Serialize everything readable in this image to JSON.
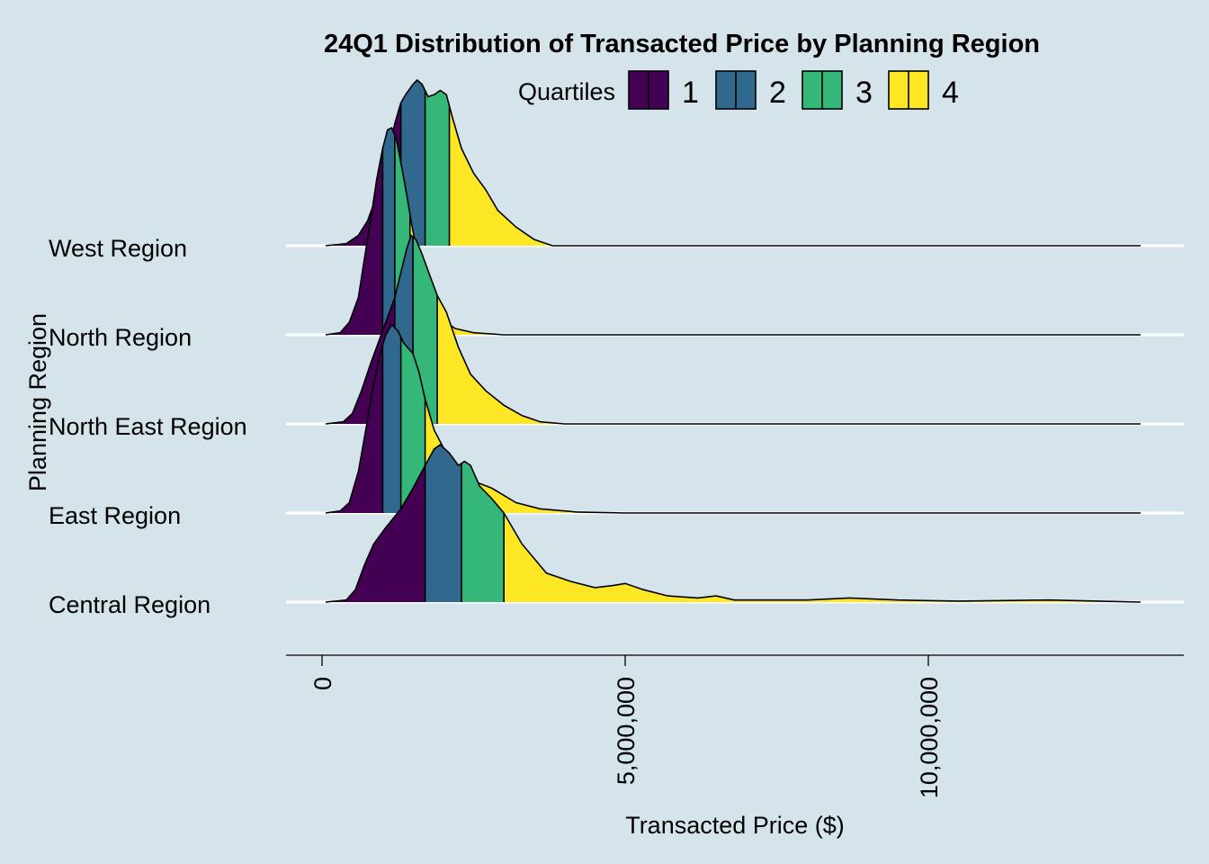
{
  "chart_data": {
    "type": "ridgeline",
    "title": "24Q1 Distribution of Transacted Price by Planning Region",
    "xlabel": "Transacted Price ($)",
    "ylabel": "Planning Region",
    "xlim": [
      -550000,
      14300000
    ],
    "x_ticks": [
      {
        "value": 0,
        "label": "0"
      },
      {
        "value": 5000000,
        "label": "5,000,000"
      },
      {
        "value": 10000000,
        "label": "10,000,000"
      }
    ],
    "legend": {
      "title": "Quartiles",
      "position": "top",
      "items": [
        {
          "label": "1",
          "color": "#440154"
        },
        {
          "label": "2",
          "color": "#31688e"
        },
        {
          "label": "3",
          "color": "#35b779"
        },
        {
          "label": "4",
          "color": "#fde725"
        }
      ]
    },
    "background": "#d5e4eb",
    "grid": "horizontal white baselines",
    "categories": [
      "Central Region",
      "East Region",
      "North East Region",
      "North Region",
      "West Region"
    ],
    "series": [
      {
        "name": "Central Region",
        "range": [
          60000,
          13500000
        ],
        "quartiles": [
          1700000,
          2300000,
          3000000
        ],
        "density": [
          [
            60000,
            0
          ],
          [
            400000,
            0.01
          ],
          [
            550000,
            0.06
          ],
          [
            700000,
            0.18
          ],
          [
            850000,
            0.28
          ],
          [
            1050000,
            0.36
          ],
          [
            1300000,
            0.45
          ],
          [
            1500000,
            0.55
          ],
          [
            1700000,
            0.66
          ],
          [
            1850000,
            0.74
          ],
          [
            1950000,
            0.76
          ],
          [
            2100000,
            0.72
          ],
          [
            2250000,
            0.66
          ],
          [
            2350000,
            0.68
          ],
          [
            2450000,
            0.66
          ],
          [
            2600000,
            0.56
          ],
          [
            2800000,
            0.5
          ],
          [
            3000000,
            0.43
          ],
          [
            3300000,
            0.28
          ],
          [
            3700000,
            0.14
          ],
          [
            4100000,
            0.1
          ],
          [
            4500000,
            0.07
          ],
          [
            4800000,
            0.08
          ],
          [
            5000000,
            0.09
          ],
          [
            5300000,
            0.06
          ],
          [
            5700000,
            0.03
          ],
          [
            6200000,
            0.02
          ],
          [
            6500000,
            0.03
          ],
          [
            6800000,
            0.01
          ],
          [
            7500000,
            0.01
          ],
          [
            8000000,
            0.01
          ],
          [
            8700000,
            0.02
          ],
          [
            9500000,
            0.01
          ],
          [
            10500000,
            0.005
          ],
          [
            12000000,
            0.01
          ],
          [
            12800000,
            0.005
          ],
          [
            13500000,
            0
          ]
        ]
      },
      {
        "name": "East Region",
        "range": [
          60000,
          13500000
        ],
        "quartiles": [
          1000000,
          1300000,
          1700000
        ],
        "density": [
          [
            60000,
            0
          ],
          [
            300000,
            0.01
          ],
          [
            450000,
            0.05
          ],
          [
            600000,
            0.2
          ],
          [
            750000,
            0.45
          ],
          [
            850000,
            0.62
          ],
          [
            950000,
            0.76
          ],
          [
            1050000,
            0.86
          ],
          [
            1150000,
            0.91
          ],
          [
            1250000,
            0.88
          ],
          [
            1350000,
            0.82
          ],
          [
            1500000,
            0.77
          ],
          [
            1600000,
            0.68
          ],
          [
            1700000,
            0.55
          ],
          [
            1850000,
            0.4
          ],
          [
            2100000,
            0.26
          ],
          [
            2450000,
            0.16
          ],
          [
            2800000,
            0.12
          ],
          [
            3200000,
            0.05
          ],
          [
            3600000,
            0.02
          ],
          [
            4200000,
            0.005
          ],
          [
            5000000,
            0
          ],
          [
            13500000,
            0
          ]
        ]
      },
      {
        "name": "North East Region",
        "range": [
          60000,
          13500000
        ],
        "quartiles": [
          1200000,
          1500000,
          1900000
        ],
        "density": [
          [
            60000,
            0
          ],
          [
            350000,
            0.01
          ],
          [
            500000,
            0.05
          ],
          [
            650000,
            0.16
          ],
          [
            800000,
            0.29
          ],
          [
            950000,
            0.41
          ],
          [
            1100000,
            0.53
          ],
          [
            1200000,
            0.61
          ],
          [
            1300000,
            0.73
          ],
          [
            1400000,
            0.85
          ],
          [
            1470000,
            0.91
          ],
          [
            1550000,
            0.89
          ],
          [
            1650000,
            0.82
          ],
          [
            1750000,
            0.74
          ],
          [
            1900000,
            0.62
          ],
          [
            2050000,
            0.54
          ],
          [
            2250000,
            0.37
          ],
          [
            2450000,
            0.24
          ],
          [
            2700000,
            0.16
          ],
          [
            3000000,
            0.09
          ],
          [
            3300000,
            0.04
          ],
          [
            3600000,
            0.01
          ],
          [
            4000000,
            0
          ],
          [
            13500000,
            0
          ]
        ]
      },
      {
        "name": "North Region",
        "range": [
          60000,
          13500000
        ],
        "quartiles": [
          1000000,
          1200000,
          1450000
        ],
        "density": [
          [
            60000,
            0
          ],
          [
            300000,
            0.01
          ],
          [
            450000,
            0.06
          ],
          [
            600000,
            0.18
          ],
          [
            700000,
            0.37
          ],
          [
            800000,
            0.55
          ],
          [
            900000,
            0.75
          ],
          [
            1000000,
            0.9
          ],
          [
            1080000,
            0.99
          ],
          [
            1150000,
            1.0
          ],
          [
            1230000,
            0.94
          ],
          [
            1320000,
            0.8
          ],
          [
            1400000,
            0.67
          ],
          [
            1480000,
            0.53
          ],
          [
            1580000,
            0.38
          ],
          [
            1700000,
            0.24
          ],
          [
            1850000,
            0.13
          ],
          [
            2000000,
            0.07
          ],
          [
            2200000,
            0.03
          ],
          [
            2500000,
            0.01
          ],
          [
            3000000,
            0
          ],
          [
            13500000,
            0
          ]
        ]
      },
      {
        "name": "West Region",
        "range": [
          60000,
          13500000
        ],
        "quartiles": [
          1300000,
          1700000,
          2100000
        ],
        "density": [
          [
            60000,
            0
          ],
          [
            400000,
            0.01
          ],
          [
            600000,
            0.05
          ],
          [
            750000,
            0.12
          ],
          [
            900000,
            0.24
          ],
          [
            1050000,
            0.4
          ],
          [
            1200000,
            0.59
          ],
          [
            1300000,
            0.69
          ],
          [
            1380000,
            0.73
          ],
          [
            1500000,
            0.78
          ],
          [
            1570000,
            0.8
          ],
          [
            1650000,
            0.78
          ],
          [
            1750000,
            0.72
          ],
          [
            1850000,
            0.73
          ],
          [
            1950000,
            0.75
          ],
          [
            2050000,
            0.73
          ],
          [
            2150000,
            0.62
          ],
          [
            2300000,
            0.47
          ],
          [
            2500000,
            0.35
          ],
          [
            2700000,
            0.27
          ],
          [
            2900000,
            0.17
          ],
          [
            3200000,
            0.09
          ],
          [
            3500000,
            0.03
          ],
          [
            3800000,
            0
          ],
          [
            13500000,
            0
          ]
        ]
      }
    ]
  }
}
